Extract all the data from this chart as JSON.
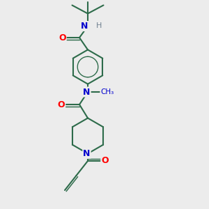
{
  "bg_color": "#ececec",
  "bond_color": "#2d6b4a",
  "atom_colors": {
    "O": "#ff0000",
    "N": "#0000cd",
    "H": "#708090"
  },
  "bond_width": 1.5,
  "figsize": [
    3.0,
    3.0
  ],
  "dpi": 100,
  "xlim": [
    0,
    10
  ],
  "ylim": [
    0,
    10
  ]
}
